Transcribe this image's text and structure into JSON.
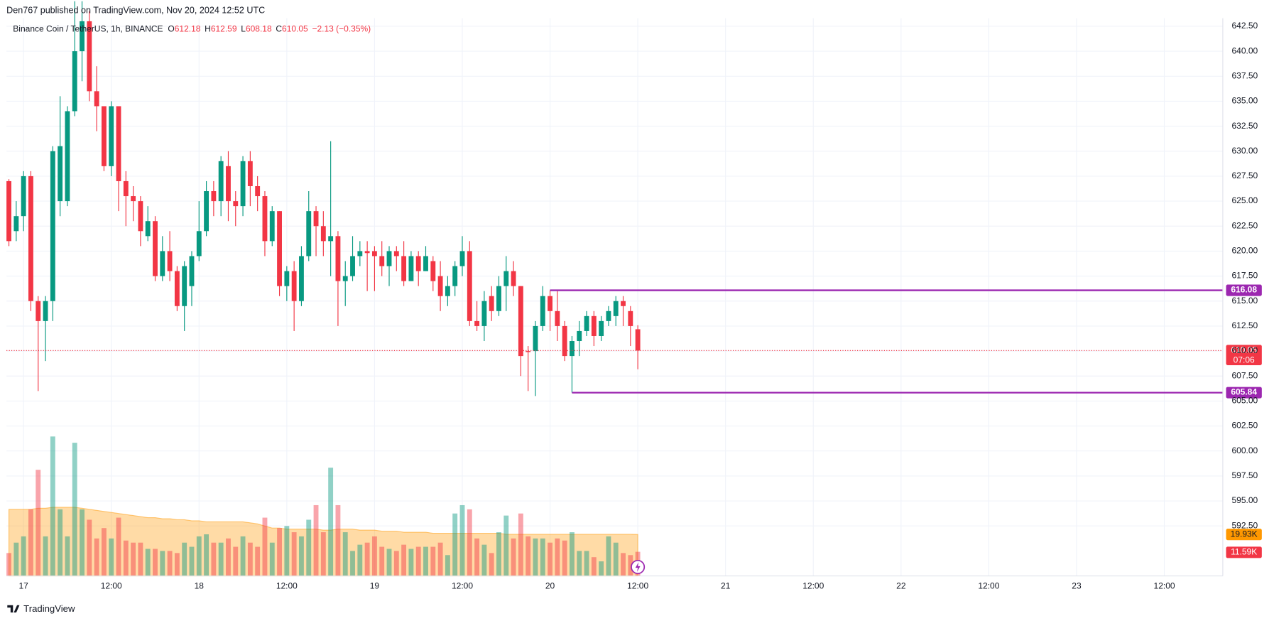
{
  "header": {
    "publisher": "Den767 published on TradingView.com, Nov 20, 2024 12:52 UTC"
  },
  "chart_data": {
    "type": "candlestick",
    "title": "Binance Coin / TetherUS, 1h, BINANCE",
    "ohlc_letters": [
      "O",
      "H",
      "L",
      "C"
    ],
    "ohlc_header": [
      612.18,
      612.59,
      608.18,
      610.05
    ],
    "change": "−2.13 (−0.35%)",
    "up_color": "#089981",
    "down_color": "#f23645",
    "ohlc": [
      [
        627,
        627.2,
        620.5,
        621
      ],
      [
        622,
        625,
        621,
        623.5
      ],
      [
        623.5,
        628,
        622,
        627.5
      ],
      [
        627.5,
        628,
        614,
        615
      ],
      [
        615,
        615.5,
        606,
        613
      ],
      [
        613,
        615.5,
        609,
        615
      ],
      [
        615,
        630.5,
        613,
        630
      ],
      [
        625,
        635.5,
        623.5,
        630.5
      ],
      [
        625,
        634.5,
        624.5,
        634
      ],
      [
        634,
        645,
        633.5,
        640
      ],
      [
        640,
        645,
        637,
        643
      ],
      [
        643,
        644,
        635,
        636
      ],
      [
        636,
        638.5,
        632,
        634.5
      ],
      [
        634.5,
        634.5,
        628,
        628.5
      ],
      [
        628.5,
        635,
        627.5,
        634.5
      ],
      [
        634.5,
        634.5,
        624,
        627
      ],
      [
        627,
        628,
        622.5,
        625.5
      ],
      [
        625.5,
        626.5,
        623,
        625
      ],
      [
        625,
        625.5,
        620.5,
        622
      ],
      [
        621.5,
        624.5,
        621,
        623
      ],
      [
        623,
        623.5,
        617,
        617.5
      ],
      [
        617.5,
        621.5,
        617,
        620
      ],
      [
        620,
        622,
        617,
        618
      ],
      [
        618,
        618.5,
        614,
        614.5
      ],
      [
        614.5,
        619,
        612,
        618.5
      ],
      [
        616.5,
        620,
        614.5,
        619.5
      ],
      [
        619.5,
        625,
        619,
        622
      ],
      [
        622,
        627,
        621.5,
        626
      ],
      [
        626,
        627,
        623.5,
        625
      ],
      [
        625,
        629.5,
        623.5,
        629
      ],
      [
        628.5,
        630,
        623,
        625
      ],
      [
        625,
        626,
        622.5,
        624.5
      ],
      [
        624.5,
        629.5,
        623.5,
        629
      ],
      [
        629,
        630,
        624.5,
        626.5
      ],
      [
        626.5,
        627.5,
        624,
        625.5
      ],
      [
        625.5,
        626,
        619.5,
        621
      ],
      [
        621,
        624.5,
        620.5,
        624
      ],
      [
        624,
        624,
        615.5,
        616.5
      ],
      [
        616.5,
        618.5,
        615,
        618
      ],
      [
        618,
        619,
        612,
        615
      ],
      [
        615,
        620.5,
        614.5,
        619.5
      ],
      [
        619.5,
        626,
        619,
        624
      ],
      [
        624,
        624.5,
        619.5,
        622.5
      ],
      [
        622.5,
        624,
        619.5,
        621
      ],
      [
        621,
        631,
        617.5,
        621.5
      ],
      [
        621.5,
        622,
        612.5,
        617
      ],
      [
        617,
        619,
        614.5,
        617.5
      ],
      [
        617.5,
        621.5,
        617,
        619.5
      ],
      [
        619.5,
        621,
        618.5,
        620
      ],
      [
        620,
        621,
        616,
        619.8
      ],
      [
        620,
        620.5,
        616,
        619.5
      ],
      [
        619.5,
        621,
        617.5,
        618.5
      ],
      [
        618.5,
        620.5,
        616.5,
        620
      ],
      [
        620,
        620.5,
        618,
        619.5
      ],
      [
        619.5,
        621,
        616.5,
        617
      ],
      [
        617,
        620,
        617,
        619.5
      ],
      [
        619.5,
        620,
        616.5,
        618
      ],
      [
        618,
        620.5,
        618,
        619.5
      ],
      [
        619,
        619.5,
        616,
        617
      ],
      [
        617.5,
        619,
        614,
        615.5
      ],
      [
        615.5,
        617.5,
        614.5,
        616.5
      ],
      [
        616.5,
        619,
        615.5,
        618.5
      ],
      [
        618.5,
        621.5,
        617.5,
        620
      ],
      [
        620,
        621,
        612.5,
        613
      ],
      [
        613,
        615,
        612,
        612.5
      ],
      [
        612.5,
        616,
        611,
        615
      ],
      [
        615.5,
        616.5,
        613,
        614
      ],
      [
        614,
        617.5,
        613.5,
        616.5
      ],
      [
        616.5,
        619.5,
        614,
        618
      ],
      [
        618,
        619,
        615.5,
        616.5
      ],
      [
        616.5,
        616.5,
        607.5,
        609.5
      ],
      [
        610,
        610.5,
        606,
        609.9
      ],
      [
        610,
        613,
        605.5,
        612.5
      ],
      [
        612.5,
        616.5,
        612,
        615.5
      ],
      [
        615.5,
        616.08,
        612,
        614
      ],
      [
        614,
        616,
        611,
        612.5
      ],
      [
        612.5,
        613,
        609,
        609.5
      ],
      [
        609.5,
        611.5,
        605.84,
        611
      ],
      [
        611,
        613,
        609.5,
        612
      ],
      [
        612,
        614,
        611.5,
        613.5
      ],
      [
        613.5,
        614,
        610.5,
        611.5
      ],
      [
        611.5,
        613.5,
        611,
        613
      ],
      [
        613,
        614.5,
        612.5,
        614
      ],
      [
        613.5,
        615.5,
        612.5,
        615
      ],
      [
        615,
        615.5,
        612.5,
        614.5
      ],
      [
        614,
        614.5,
        610.5,
        612.5
      ],
      [
        612.18,
        612.59,
        608.18,
        610.05
      ]
    ],
    "volume": [
      11,
      16,
      19,
      32,
      51,
      19,
      67,
      32,
      19,
      64,
      32,
      27,
      18,
      23,
      18,
      28,
      17,
      16,
      16,
      13,
      13,
      12,
      12,
      11,
      16,
      14,
      19,
      20,
      16,
      16,
      18,
      14,
      19,
      16,
      14,
      28,
      16,
      23,
      24,
      21,
      19,
      27,
      34,
      21,
      52,
      34,
      21,
      12,
      15,
      16,
      19,
      14,
      13,
      12,
      15,
      13,
      14,
      14,
      14,
      16,
      10,
      30,
      34,
      32,
      18,
      15,
      11,
      21,
      29,
      18,
      30,
      19,
      18,
      18,
      16,
      18,
      17,
      21,
      12,
      12,
      9,
      7,
      19,
      16,
      11,
      10,
      11.59
    ],
    "volume_label": "11.59K",
    "volume_ma": [
      32,
      32,
      32,
      32,
      32.5,
      32.5,
      33,
      33,
      33,
      33,
      32.5,
      32,
      31.5,
      31,
      30.5,
      30,
      29.5,
      29,
      28.5,
      28,
      28,
      27.5,
      27.5,
      27,
      27,
      26.5,
      26.5,
      26,
      26,
      26,
      26,
      26,
      26,
      25.5,
      25,
      24,
      23,
      23,
      22.5,
      22.5,
      22.5,
      22.5,
      22.5,
      22,
      22,
      22.5,
      22.5,
      22.5,
      22,
      22,
      22,
      21.5,
      21.5,
      21.5,
      21,
      21,
      21,
      21,
      20.5,
      20.5,
      20.5,
      20.5,
      20.5,
      20.5,
      20.5,
      20.5,
      20.5,
      20.5,
      20,
      20,
      20,
      20,
      20,
      20,
      20,
      20,
      20,
      20,
      20,
      20,
      20,
      20,
      20,
      20,
      20,
      20,
      19.93
    ],
    "volume_ma_label": "19.93K",
    "volume_ma_color": "#ff9800",
    "last_price": 610.05,
    "countdown": "07:06",
    "levels": [
      {
        "value": 616.08,
        "start": 74,
        "color": "#9c27b0"
      },
      {
        "value": 605.84,
        "start": 77,
        "color": "#9c27b0"
      }
    ],
    "ylim": [
      587.5,
      643.3
    ],
    "yticks": [
      {
        "value": 592.5,
        "label": "592.50"
      },
      {
        "value": 595,
        "label": "595.00"
      },
      {
        "value": 597.5,
        "label": "597.50"
      },
      {
        "value": 600,
        "label": "600.00"
      },
      {
        "value": 602.5,
        "label": "602.50"
      },
      {
        "value": 605,
        "label": "605.00"
      },
      {
        "value": 607.5,
        "label": "607.50"
      },
      {
        "value": 610,
        "label": "610.00"
      },
      {
        "value": 612.5,
        "label": "612.50"
      },
      {
        "value": 615,
        "label": "615.00"
      },
      {
        "value": 617.5,
        "label": "617.50"
      },
      {
        "value": 620,
        "label": "620.00"
      },
      {
        "value": 622.5,
        "label": "622.50"
      },
      {
        "value": 625,
        "label": "625.00"
      },
      {
        "value": 627.5,
        "label": "627.50"
      },
      {
        "value": 630,
        "label": "630.00"
      },
      {
        "value": 632.5,
        "label": "632.50"
      },
      {
        "value": 635,
        "label": "635.00"
      },
      {
        "value": 637.5,
        "label": "637.50"
      },
      {
        "value": 640,
        "label": "640.00"
      },
      {
        "value": 642.5,
        "label": "642.50"
      }
    ],
    "xlim": [
      -0.33,
      166
    ],
    "xticks": [
      {
        "value": 2,
        "label": "17"
      },
      {
        "value": 14,
        "label": "12:00"
      },
      {
        "value": 26,
        "label": "18"
      },
      {
        "value": 38,
        "label": "12:00"
      },
      {
        "value": 50,
        "label": "19"
      },
      {
        "value": 62,
        "label": "12:00"
      },
      {
        "value": 74,
        "label": "20"
      },
      {
        "value": 86,
        "label": "12:00"
      },
      {
        "value": 98,
        "label": "21"
      },
      {
        "value": 110,
        "label": "12:00"
      },
      {
        "value": 122,
        "label": "22"
      },
      {
        "value": 134,
        "label": "12:00"
      },
      {
        "value": 146,
        "label": "23"
      },
      {
        "value": 158,
        "label": "12:00"
      }
    ],
    "grid": true
  },
  "footer": {
    "brand": "TradingView"
  }
}
